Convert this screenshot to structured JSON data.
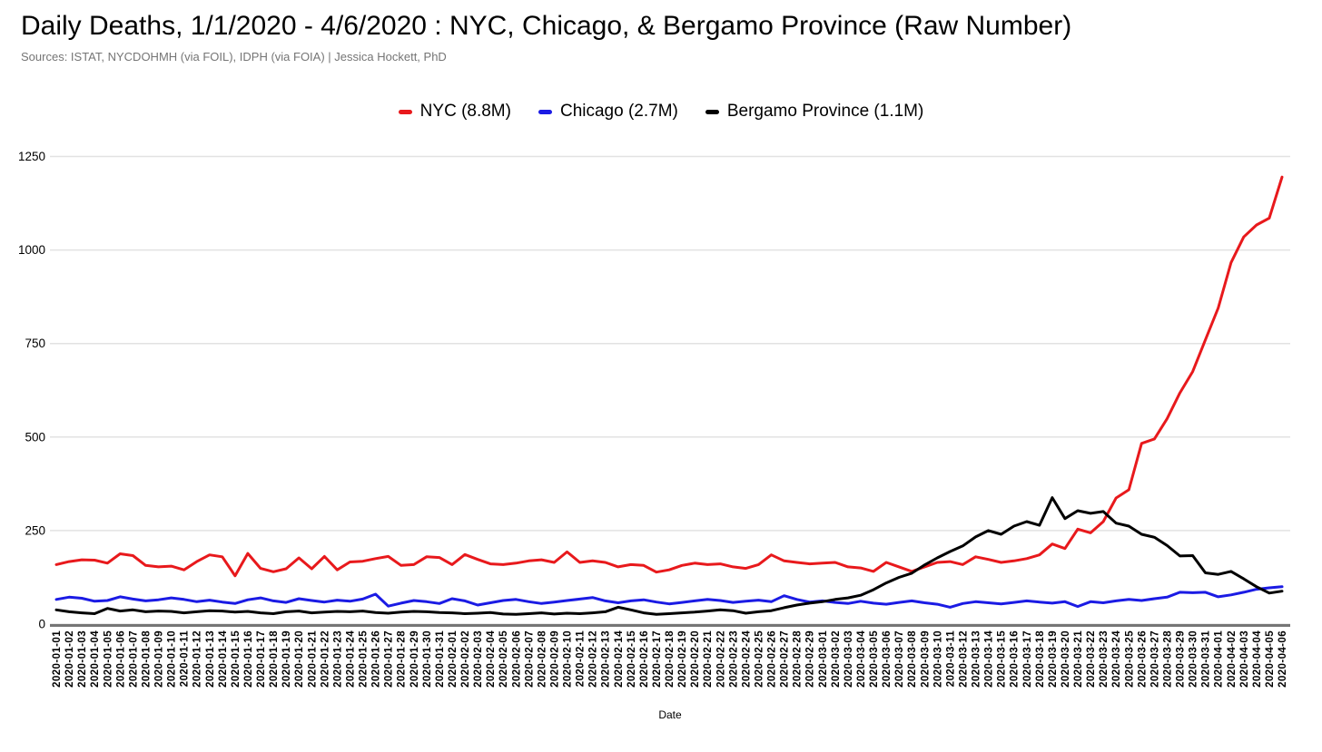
{
  "title": "Daily Deaths, 1/1/2020 - 4/6/2020 : NYC, Chicago, & Bergamo Province (Raw Number)",
  "subtitle": "Sources: ISTAT, NYCDOHMH (via FOIL), IDPH (via FOIA) | Jessica Hockett, PhD",
  "legend": {
    "items": [
      {
        "label": "NYC (8.8M)",
        "color": "#e8191c"
      },
      {
        "label": "Chicago (2.7M)",
        "color": "#1b1be4"
      },
      {
        "label": "Bergamo Province (1.1M)",
        "color": "#000000"
      }
    ]
  },
  "colors": {
    "gridline": "#e2e2e2",
    "axis": "#757575",
    "background": "#ffffff"
  },
  "chart_data": {
    "type": "line",
    "title": "Daily Deaths, 1/1/2020 - 4/6/2020 : NYC, Chicago, & Bergamo Province (Raw Number)",
    "xlabel": "Date",
    "ylabel": "",
    "ylim": [
      0,
      1250
    ],
    "yticks": [
      0,
      250,
      500,
      750,
      1000,
      1250
    ],
    "grid": true,
    "legend_position": "top-center",
    "x": [
      "2020-01-01",
      "2020-01-02",
      "2020-01-03",
      "2020-01-04",
      "2020-01-05",
      "2020-01-06",
      "2020-01-07",
      "2020-01-08",
      "2020-01-09",
      "2020-01-10",
      "2020-01-11",
      "2020-01-12",
      "2020-01-13",
      "2020-01-14",
      "2020-01-15",
      "2020-01-16",
      "2020-01-17",
      "2020-01-18",
      "2020-01-19",
      "2020-01-20",
      "2020-01-21",
      "2020-01-22",
      "2020-01-23",
      "2020-01-24",
      "2020-01-25",
      "2020-01-26",
      "2020-01-27",
      "2020-01-28",
      "2020-01-29",
      "2020-01-30",
      "2020-01-31",
      "2020-02-01",
      "2020-02-02",
      "2020-02-03",
      "2020-02-04",
      "2020-02-05",
      "2020-02-06",
      "2020-02-07",
      "2020-02-08",
      "2020-02-09",
      "2020-02-10",
      "2020-02-11",
      "2020-02-12",
      "2020-02-13",
      "2020-02-14",
      "2020-02-15",
      "2020-02-16",
      "2020-02-17",
      "2020-02-18",
      "2020-02-19",
      "2020-02-20",
      "2020-02-21",
      "2020-02-22",
      "2020-02-23",
      "2020-02-24",
      "2020-02-25",
      "2020-02-26",
      "2020-02-27",
      "2020-02-28",
      "2020-02-29",
      "2020-03-01",
      "2020-03-02",
      "2020-03-03",
      "2020-03-04",
      "2020-03-05",
      "2020-03-06",
      "2020-03-07",
      "2020-03-08",
      "2020-03-09",
      "2020-03-10",
      "2020-03-11",
      "2020-03-12",
      "2020-03-13",
      "2020-03-14",
      "2020-03-15",
      "2020-03-16",
      "2020-03-17",
      "2020-03-18",
      "2020-03-19",
      "2020-03-20",
      "2020-03-21",
      "2020-03-22",
      "2020-03-23",
      "2020-03-24",
      "2020-03-25",
      "2020-03-26",
      "2020-03-27",
      "2020-03-28",
      "2020-03-29",
      "2020-03-30",
      "2020-03-31",
      "2020-04-01",
      "2020-04-02",
      "2020-04-03",
      "2020-04-04",
      "2020-04-05",
      "2020-04-06"
    ],
    "series": [
      {
        "name": "NYC (8.8M)",
        "color": "#e8191c",
        "values": [
          159,
          167,
          172,
          171,
          163,
          188,
          183,
          157,
          153,
          155,
          145,
          167,
          185,
          180,
          129,
          189,
          149,
          140,
          148,
          177,
          148,
          181,
          145,
          166,
          168,
          175,
          181,
          157,
          159,
          180,
          178,
          159,
          186,
          173,
          161,
          159,
          163,
          169,
          172,
          165,
          193,
          165,
          169,
          165,
          153,
          159,
          157,
          139,
          145,
          157,
          163,
          159,
          161,
          153,
          149,
          159,
          185,
          169,
          165,
          161,
          163,
          165,
          153,
          150,
          141,
          165,
          153,
          141,
          153,
          165,
          167,
          159,
          180,
          173,
          165,
          169,
          175,
          185,
          214,
          202,
          254,
          244,
          274,
          337,
          359,
          483,
          495,
          549,
          618,
          675,
          760,
          845,
          966,
          1035,
          1067,
          1085,
          1195
        ]
      },
      {
        "name": "Chicago (2.7M)",
        "color": "#1b1be4",
        "values": [
          66,
          72,
          69,
          61,
          63,
          73,
          67,
          62,
          65,
          70,
          66,
          60,
          64,
          59,
          55,
          65,
          70,
          62,
          58,
          68,
          63,
          59,
          64,
          61,
          67,
          80,
          48,
          56,
          63,
          60,
          55,
          68,
          62,
          51,
          57,
          63,
          66,
          60,
          55,
          59,
          63,
          67,
          71,
          62,
          57,
          62,
          65,
          59,
          54,
          58,
          62,
          66,
          63,
          58,
          61,
          64,
          60,
          76,
          66,
          59,
          62,
          58,
          55,
          61,
          56,
          53,
          58,
          62,
          57,
          53,
          45,
          55,
          60,
          57,
          54,
          58,
          62,
          59,
          56,
          60,
          47,
          60,
          57,
          62,
          66,
          63,
          68,
          72,
          85,
          84,
          85,
          73,
          78,
          85,
          93,
          97,
          100
        ]
      },
      {
        "name": "Bergamo Province (1.1M)",
        "color": "#000000",
        "values": [
          38,
          33,
          30,
          28,
          42,
          35,
          38,
          33,
          35,
          34,
          30,
          33,
          36,
          35,
          32,
          34,
          30,
          28,
          33,
          35,
          30,
          32,
          34,
          33,
          35,
          31,
          29,
          32,
          34,
          33,
          31,
          30,
          28,
          29,
          31,
          27,
          26,
          28,
          30,
          27,
          29,
          28,
          30,
          33,
          45,
          38,
          30,
          26,
          28,
          30,
          32,
          35,
          38,
          36,
          29,
          33,
          36,
          44,
          51,
          56,
          60,
          66,
          70,
          77,
          92,
          110,
          125,
          136,
          158,
          177,
          194,
          209,
          233,
          250,
          240,
          262,
          274,
          264,
          338,
          282,
          303,
          296,
          301,
          270,
          262,
          240,
          232,
          210,
          182,
          183,
          137,
          133,
          141,
          121,
          100,
          83,
          88
        ]
      }
    ]
  }
}
